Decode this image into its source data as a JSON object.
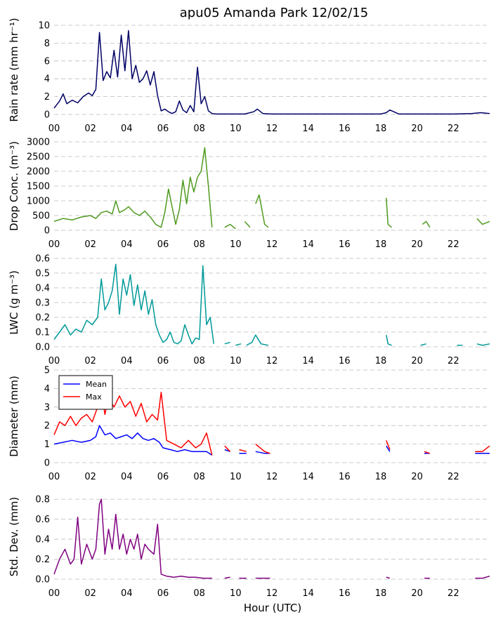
{
  "figure": {
    "title": "apu05 Amanda Park 12/02/15",
    "xlabel": "Hour (UTC)"
  },
  "chart_data": [
    {
      "type": "line",
      "id": "rain",
      "ylabel": "Rain rate (mm hr⁻¹)",
      "ylim": [
        0,
        10
      ],
      "yticks": [
        0,
        2,
        4,
        6,
        8,
        10
      ],
      "xlim": [
        0,
        24
      ],
      "xticks": [
        "00",
        "02",
        "04",
        "06",
        "08",
        "10",
        "12",
        "14",
        "16",
        "18",
        "20",
        "22"
      ],
      "grid": true,
      "series": [
        {
          "color": "#000066",
          "x": [
            0,
            0.3,
            0.5,
            0.7,
            1,
            1.3,
            1.6,
            1.9,
            2.1,
            2.3,
            2.5,
            2.7,
            2.9,
            3.1,
            3.3,
            3.5,
            3.7,
            3.9,
            4.1,
            4.3,
            4.5,
            4.7,
            4.9,
            5.1,
            5.3,
            5.5,
            5.7,
            5.9,
            6.1,
            6.3,
            6.5,
            6.7,
            6.9,
            7.1,
            7.3,
            7.5,
            7.7,
            7.9,
            8.1,
            8.3,
            8.5,
            8.7,
            8.9,
            9.5,
            10,
            10.5,
            11,
            11.2,
            11.5,
            12,
            14,
            16,
            18,
            18.3,
            18.5,
            19,
            20,
            22,
            23,
            23.5,
            24
          ],
          "y": [
            0.7,
            1.5,
            2.3,
            1.2,
            1.6,
            1.3,
            2.0,
            2.4,
            2.1,
            2.8,
            9.2,
            3.8,
            4.8,
            4.1,
            7.2,
            4.2,
            8.9,
            4.9,
            9.4,
            4.0,
            5.5,
            3.6,
            4.0,
            4.9,
            3.3,
            4.8,
            2.1,
            0.4,
            0.6,
            0.3,
            0.1,
            0.3,
            1.5,
            0.5,
            0.2,
            1.0,
            0.3,
            5.3,
            1.2,
            2.0,
            0.4,
            0.1,
            0.05,
            0.05,
            0.05,
            0.05,
            0.3,
            0.6,
            0.1,
            0.05,
            0.05,
            0.05,
            0.05,
            0.2,
            0.5,
            0.05,
            0.05,
            0.05,
            0.1,
            0.2,
            0.1
          ]
        }
      ]
    },
    {
      "type": "line",
      "id": "conc",
      "ylabel": "Drop Conc. (m⁻³)",
      "ylim": [
        0,
        3000
      ],
      "yticks": [
        0,
        500,
        1000,
        1500,
        2000,
        2500,
        3000
      ],
      "xlim": [
        0,
        24
      ],
      "xticks": [
        "00",
        "02",
        "04",
        "06",
        "08",
        "10",
        "12",
        "14",
        "16",
        "18",
        "20",
        "22"
      ],
      "grid": true,
      "series": [
        {
          "color": "#4f9a1f",
          "x": [
            0,
            0.5,
            1,
            1.5,
            2,
            2.3,
            2.6,
            2.9,
            3.2,
            3.4,
            3.6,
            3.9,
            4.1,
            4.4,
            4.7,
            5,
            5.3,
            5.6,
            5.9,
            6.1,
            6.3,
            6.5,
            6.7,
            6.9,
            7.1,
            7.3,
            7.5,
            7.7,
            7.9,
            8.1,
            8.3,
            8.5,
            8.7,
            null,
            9.4,
            9.7,
            10,
            null,
            10.5,
            10.8,
            null,
            11.1,
            11.3,
            11.6,
            11.8,
            null,
            18.3,
            18.4,
            18.6,
            null,
            20.3,
            20.5,
            20.7,
            null,
            23.3,
            23.6,
            24
          ],
          "y": [
            300,
            400,
            350,
            450,
            500,
            400,
            600,
            650,
            550,
            1000,
            600,
            700,
            800,
            600,
            500,
            650,
            450,
            200,
            100,
            600,
            1400,
            800,
            200,
            700,
            1700,
            900,
            1800,
            1300,
            1800,
            2000,
            2800,
            1500,
            100,
            null,
            100,
            200,
            50,
            null,
            300,
            100,
            null,
            900,
            1200,
            200,
            100,
            null,
            1100,
            200,
            100,
            null,
            200,
            300,
            100,
            null,
            400,
            200,
            300
          ]
        }
      ]
    },
    {
      "type": "line",
      "id": "lwc",
      "ylabel": "LWC (g m⁻³)",
      "ylim": [
        0,
        0.6
      ],
      "yticks": [
        0.0,
        0.1,
        0.2,
        0.3,
        0.4,
        0.5,
        0.6
      ],
      "xlim": [
        0,
        24
      ],
      "xticks": [
        "00",
        "02",
        "04",
        "06",
        "08",
        "10",
        "12",
        "14",
        "16",
        "18",
        "20",
        "22"
      ],
      "grid": true,
      "series": [
        {
          "color": "#009999",
          "x": [
            0,
            0.3,
            0.6,
            0.9,
            1.2,
            1.5,
            1.8,
            2.1,
            2.4,
            2.6,
            2.8,
            3,
            3.2,
            3.4,
            3.6,
            3.8,
            4,
            4.2,
            4.4,
            4.6,
            4.8,
            5,
            5.2,
            5.4,
            5.6,
            5.8,
            6,
            6.2,
            6.4,
            6.6,
            6.8,
            7,
            7.2,
            7.4,
            7.6,
            7.8,
            8,
            8.2,
            8.4,
            8.6,
            8.8,
            null,
            9.4,
            9.7,
            null,
            10,
            10.3,
            null,
            10.6,
            10.9,
            11.1,
            11.4,
            11.8,
            null,
            18.3,
            18.4,
            18.6,
            null,
            20.2,
            20.5,
            null,
            22.2,
            22.5,
            null,
            23.3,
            23.6,
            24
          ],
          "y": [
            0.05,
            0.1,
            0.15,
            0.08,
            0.12,
            0.1,
            0.18,
            0.15,
            0.2,
            0.46,
            0.25,
            0.3,
            0.38,
            0.56,
            0.22,
            0.46,
            0.35,
            0.49,
            0.28,
            0.42,
            0.25,
            0.38,
            0.22,
            0.32,
            0.15,
            0.08,
            0.03,
            0.05,
            0.1,
            0.03,
            0.02,
            0.04,
            0.15,
            0.08,
            0.02,
            0.06,
            0.05,
            0.55,
            0.15,
            0.2,
            0.02,
            null,
            0.02,
            0.03,
            null,
            0.01,
            0.02,
            null,
            0.01,
            0.03,
            0.08,
            0.02,
            0.01,
            null,
            0.08,
            0.02,
            0.01,
            null,
            0.01,
            0.02,
            null,
            0.01,
            0.01,
            null,
            0.02,
            0.01,
            0.02
          ]
        }
      ]
    },
    {
      "type": "line",
      "id": "diam",
      "ylabel": "Diameter (mm)",
      "ylim": [
        0,
        5
      ],
      "yticks": [
        0,
        1,
        2,
        3,
        4,
        5
      ],
      "xlim": [
        0,
        24
      ],
      "xticks": [
        "00",
        "02",
        "04",
        "06",
        "08",
        "10",
        "12",
        "14",
        "16",
        "18",
        "20",
        "22"
      ],
      "grid": true,
      "legend_position": "top-left",
      "series": [
        {
          "name": "Mean",
          "color": "#0000ff",
          "x": [
            0,
            0.5,
            1,
            1.5,
            2,
            2.3,
            2.5,
            2.8,
            3.1,
            3.4,
            3.7,
            4,
            4.3,
            4.6,
            4.9,
            5.2,
            5.5,
            5.8,
            6,
            6.4,
            6.8,
            7.2,
            7.6,
            8,
            8.4,
            8.7,
            null,
            9.4,
            9.7,
            null,
            10.2,
            10.6,
            null,
            11.1,
            11.6,
            11.9,
            null,
            18.3,
            18.5,
            null,
            20.4,
            20.7,
            null,
            22.1,
            null,
            23.2,
            23.6,
            24
          ],
          "y": [
            1.0,
            1.1,
            1.2,
            1.1,
            1.2,
            1.4,
            2.0,
            1.5,
            1.6,
            1.3,
            1.4,
            1.5,
            1.3,
            1.6,
            1.3,
            1.2,
            1.3,
            1.1,
            0.8,
            0.7,
            0.6,
            0.7,
            0.6,
            0.6,
            0.6,
            0.4,
            null,
            0.7,
            0.6,
            null,
            0.5,
            0.5,
            null,
            0.6,
            0.5,
            0.5,
            null,
            0.9,
            0.6,
            null,
            0.5,
            0.5,
            null,
            0.5,
            null,
            0.5,
            0.5,
            0.5
          ]
        },
        {
          "name": "Max",
          "color": "#ff0000",
          "x": [
            0,
            0.3,
            0.6,
            0.9,
            1.2,
            1.5,
            1.8,
            2.1,
            2.4,
            2.6,
            2.8,
            3,
            3.3,
            3.6,
            3.9,
            4.2,
            4.5,
            4.8,
            5.1,
            5.4,
            5.7,
            5.9,
            6.2,
            6.6,
            7,
            7.4,
            7.8,
            8.1,
            8.4,
            8.7,
            null,
            9.4,
            9.7,
            null,
            10.2,
            10.6,
            null,
            11.1,
            11.6,
            11.9,
            null,
            18.3,
            18.5,
            null,
            20.4,
            20.7,
            null,
            22.1,
            null,
            23.2,
            23.6,
            24
          ],
          "y": [
            1.5,
            2.2,
            2.0,
            2.5,
            2.0,
            2.4,
            2.6,
            2.2,
            3.0,
            4.0,
            2.6,
            3.5,
            3.0,
            3.6,
            3.0,
            3.3,
            2.5,
            3.2,
            2.2,
            2.6,
            2.3,
            3.8,
            1.2,
            1.0,
            0.8,
            1.2,
            0.8,
            1.0,
            1.6,
            0.4,
            null,
            0.9,
            0.6,
            null,
            0.7,
            0.6,
            null,
            1.0,
            0.6,
            0.5,
            null,
            1.2,
            0.7,
            null,
            0.6,
            0.5,
            null,
            0.6,
            null,
            0.6,
            0.6,
            0.9
          ]
        }
      ]
    },
    {
      "type": "line",
      "id": "std",
      "ylabel": "Std. Dev. (mm)",
      "ylim": [
        0,
        0.85
      ],
      "yticks": [
        0.0,
        0.2,
        0.4,
        0.6,
        0.8
      ],
      "xlim": [
        0,
        24
      ],
      "xticks": [
        "00",
        "02",
        "04",
        "06",
        "08",
        "10",
        "12",
        "14",
        "16",
        "18",
        "20",
        "22"
      ],
      "grid": true,
      "series": [
        {
          "color": "#800080",
          "x": [
            0,
            0.3,
            0.6,
            0.9,
            1.1,
            1.3,
            1.5,
            1.8,
            2.1,
            2.3,
            2.5,
            2.6,
            2.8,
            3,
            3.2,
            3.4,
            3.6,
            3.8,
            4,
            4.2,
            4.4,
            4.6,
            4.8,
            5,
            5.2,
            5.5,
            5.7,
            5.9,
            6.2,
            6.6,
            7,
            7.4,
            7.8,
            8.2,
            8.7,
            null,
            9.4,
            9.7,
            null,
            10.2,
            10.6,
            null,
            11.1,
            11.6,
            11.9,
            null,
            18.3,
            18.5,
            null,
            20.4,
            20.7,
            null,
            22.1,
            null,
            23.2,
            23.6,
            24
          ],
          "y": [
            0.05,
            0.2,
            0.3,
            0.15,
            0.2,
            0.62,
            0.15,
            0.35,
            0.2,
            0.3,
            0.75,
            0.8,
            0.25,
            0.5,
            0.3,
            0.65,
            0.3,
            0.45,
            0.25,
            0.4,
            0.3,
            0.45,
            0.2,
            0.35,
            0.3,
            0.25,
            0.55,
            0.05,
            0.03,
            0.02,
            0.03,
            0.02,
            0.02,
            0.01,
            0.01,
            null,
            0.01,
            0.02,
            null,
            0.01,
            0.01,
            null,
            0.01,
            0.01,
            0.01,
            null,
            0.02,
            0.01,
            null,
            0.01,
            0.01,
            null,
            0.01,
            null,
            0.01,
            0.01,
            0.03
          ]
        }
      ]
    }
  ]
}
